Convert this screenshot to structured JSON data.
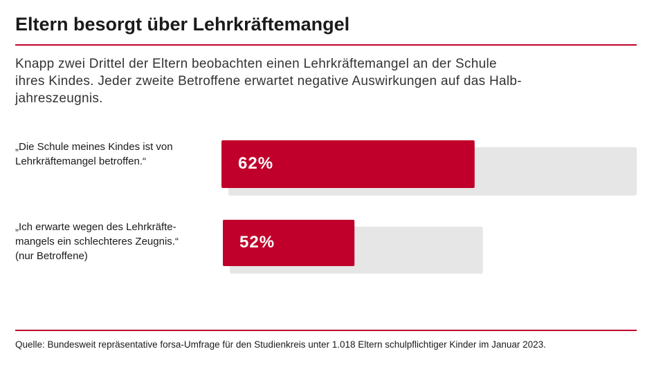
{
  "chart_data": {
    "type": "bar",
    "title": "Eltern besorgt über Lehrkräftemangel",
    "subtitle": "Knapp zwei Drittel der Eltern beobachten einen Lehrkräftemangel an der Schule\nihres Kindes. Jeder zweite Betroffene erwartet negative Auswirkungen auf das Halb-\njahreszeugnis.",
    "categories": [
      "„Die Schule meines Kindes ist von\nLehrkräftemangel betroffen.“",
      "„Ich erwarte wegen des Lehrkräfte-\nmangels ein schlechteres Zeugnis.“\n(nur Betroffene)"
    ],
    "values": [
      62,
      52
    ],
    "value_labels": [
      "62%",
      "52%"
    ],
    "xlim": [
      0,
      100
    ],
    "color": "#c0002a",
    "track_color": "#e6e6e6",
    "source": "Quelle: Bundesweit repräsentative forsa-Umfrage für den Studienkreis unter 1.018 Eltern schulpflichtiger Kinder im Januar 2023."
  }
}
